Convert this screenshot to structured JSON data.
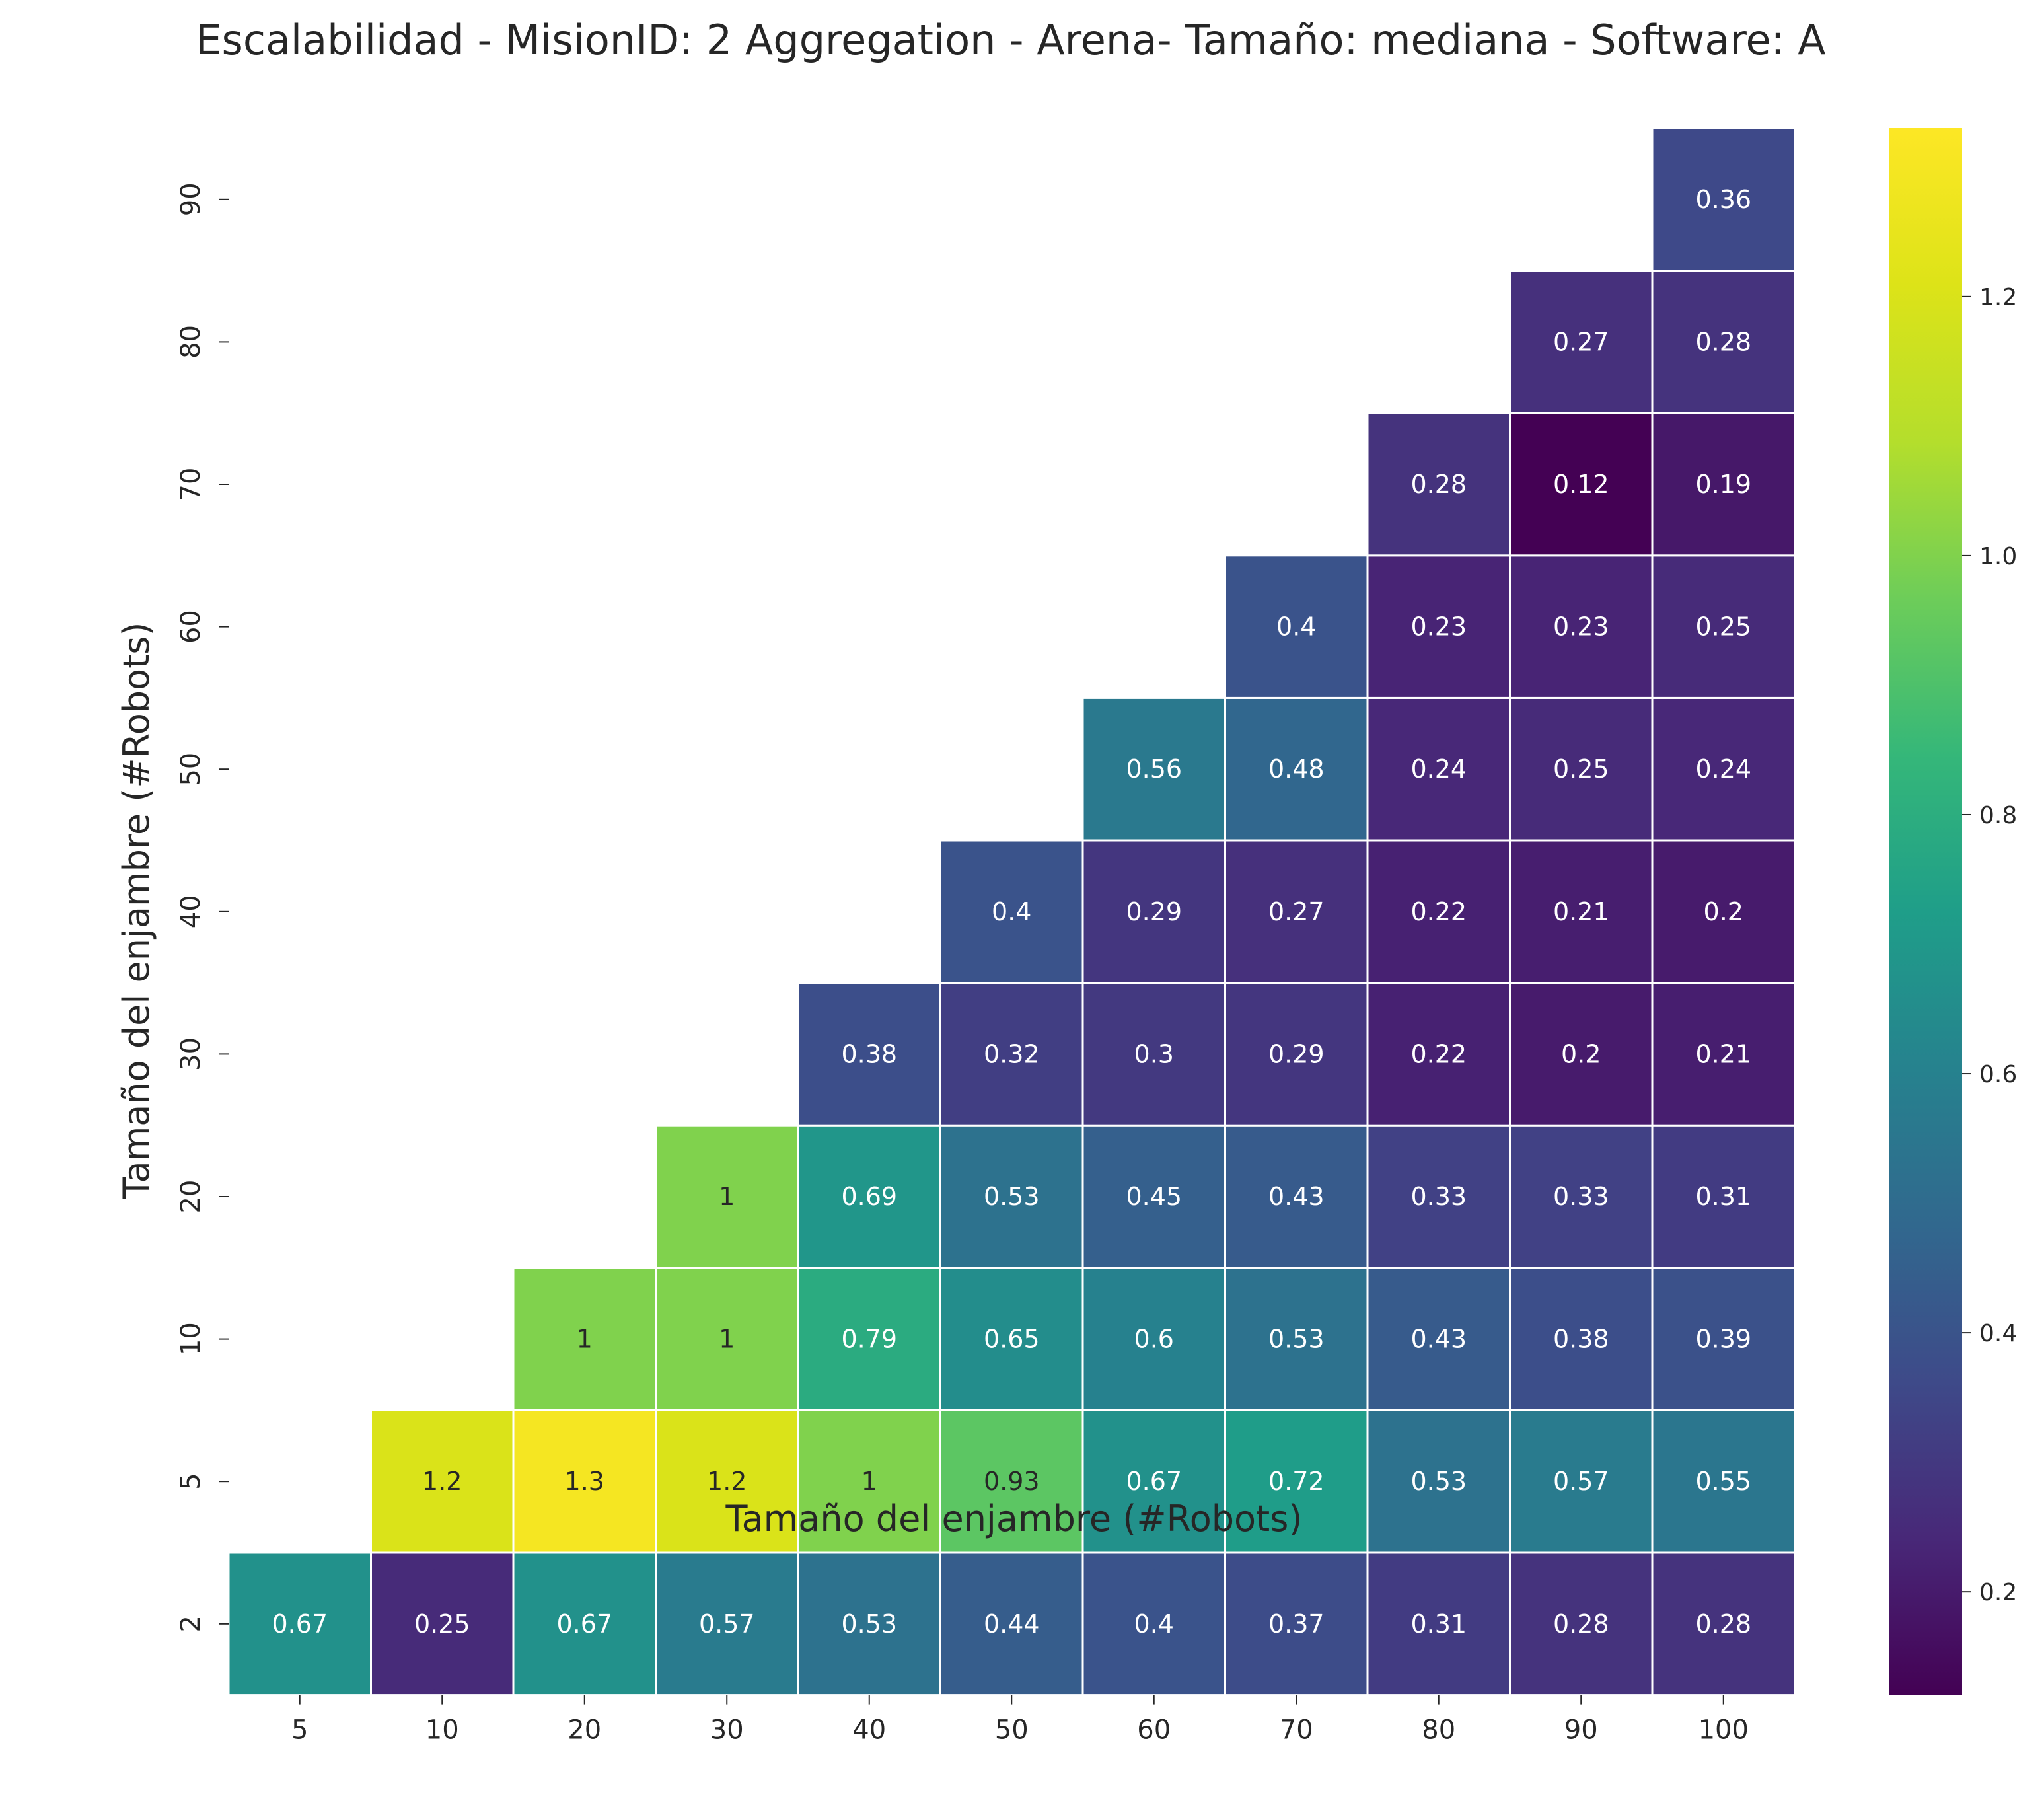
{
  "chart_data": {
    "type": "heatmap",
    "title": "Escalabilidad - MisionID: 2 Aggregation - Arena- Tamaño: mediana - Software: A",
    "xlabel": "Tamaño del enjambre (#Robots)",
    "ylabel": "Tamaño del enjambre (#Robots)",
    "x_categories": [
      "5",
      "10",
      "20",
      "30",
      "40",
      "50",
      "60",
      "70",
      "80",
      "90",
      "100"
    ],
    "y_categories": [
      "2",
      "5",
      "10",
      "20",
      "30",
      "40",
      "50",
      "60",
      "70",
      "80",
      "90"
    ],
    "cells": [
      [
        0.67,
        0.25,
        0.67,
        0.57,
        0.53,
        0.44,
        0.4,
        0.37,
        0.31,
        0.28,
        0.28
      ],
      [
        null,
        1.2,
        1.3,
        1.2,
        1,
        0.93,
        0.67,
        0.72,
        0.53,
        0.57,
        0.55
      ],
      [
        null,
        null,
        1,
        1,
        0.79,
        0.65,
        0.6,
        0.53,
        0.43,
        0.38,
        0.39
      ],
      [
        null,
        null,
        null,
        1,
        0.69,
        0.53,
        0.45,
        0.43,
        0.33,
        0.33,
        0.31
      ],
      [
        null,
        null,
        null,
        null,
        0.38,
        0.32,
        0.3,
        0.29,
        0.22,
        0.2,
        0.21
      ],
      [
        null,
        null,
        null,
        null,
        null,
        0.4,
        0.29,
        0.27,
        0.22,
        0.21,
        0.2
      ],
      [
        null,
        null,
        null,
        null,
        null,
        null,
        0.56,
        0.48,
        0.24,
        0.25,
        0.24
      ],
      [
        null,
        null,
        null,
        null,
        null,
        null,
        null,
        0.4,
        0.23,
        0.23,
        0.25
      ],
      [
        null,
        null,
        null,
        null,
        null,
        null,
        null,
        null,
        0.28,
        0.12,
        0.19
      ],
      [
        null,
        null,
        null,
        null,
        null,
        null,
        null,
        null,
        null,
        0.27,
        0.28
      ],
      [
        null,
        null,
        null,
        null,
        null,
        null,
        null,
        null,
        null,
        null,
        0.36
      ]
    ],
    "colormap": "viridis",
    "color_range": [
      0.12,
      1.33
    ],
    "colorbar_ticks": [
      "0.2",
      "0.4",
      "0.6",
      "0.8",
      "1.0",
      "1.2"
    ],
    "colorbar_tick_values": [
      0.2,
      0.4,
      0.6,
      0.8,
      1.0,
      1.2
    ],
    "grid": false,
    "legend": "colorbar-right"
  }
}
